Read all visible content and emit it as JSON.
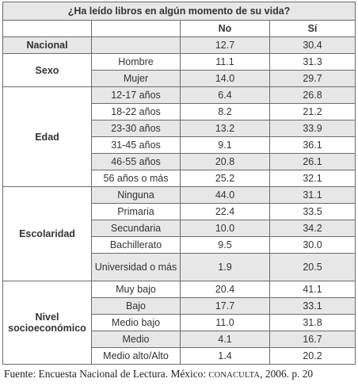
{
  "table": {
    "title": "¿Ha leído libros en algún momento de su vida?",
    "col_no": "No",
    "col_si": "Sí",
    "nacional": {
      "label": "Nacional",
      "no": "12.7",
      "si": "30.4"
    },
    "sexo": {
      "label": "Sexo",
      "rows": [
        {
          "label": "Hombre",
          "no": "11.1",
          "si": "31.3"
        },
        {
          "label": "Mujer",
          "no": "14.0",
          "si": "29.7"
        }
      ]
    },
    "edad": {
      "label": "Edad",
      "rows": [
        {
          "label": "12-17 años",
          "no": "6.4",
          "si": "26.8"
        },
        {
          "label": "18-22 años",
          "no": "8.2",
          "si": "21.2"
        },
        {
          "label": "23-30 años",
          "no": "13.2",
          "si": "33.9"
        },
        {
          "label": "31-45 años",
          "no": "9.1",
          "si": "36.1"
        },
        {
          "label": "46-55 años",
          "no": "20.8",
          "si": "26.1"
        },
        {
          "label": "56 años o más",
          "no": "25.2",
          "si": "32.1"
        }
      ]
    },
    "escolaridad": {
      "label": "Escolaridad",
      "rows": [
        {
          "label": "Ninguna",
          "no": "44.0",
          "si": "31.1"
        },
        {
          "label": "Primaria",
          "no": "22.4",
          "si": "33.5"
        },
        {
          "label": "Secundaria",
          "no": "10.0",
          "si": "34.2"
        },
        {
          "label": "Bachillerato",
          "no": "9.5",
          "si": "30.0"
        },
        {
          "label": "Universidad o más",
          "no": "1.9",
          "si": "20.5"
        }
      ]
    },
    "nivel": {
      "label": "Nivel socioeconómico",
      "rows": [
        {
          "label": "Muy bajo",
          "no": "20.4",
          "si": "41.1"
        },
        {
          "label": "Bajo",
          "no": "17.7",
          "si": "33.1"
        },
        {
          "label": "Medio bajo",
          "no": "11.0",
          "si": "31.8"
        },
        {
          "label": "Medio",
          "no": "4.1",
          "si": "16.7"
        },
        {
          "label": "Medio alto/Alto",
          "no": "1.4",
          "si": "20.2"
        }
      ]
    }
  },
  "footer": {
    "prefix": "Fuente: Encuesta Nacional de Lectura. México: ",
    "org": "CONACULTA",
    "suffix": ", 2006. p. 20"
  }
}
